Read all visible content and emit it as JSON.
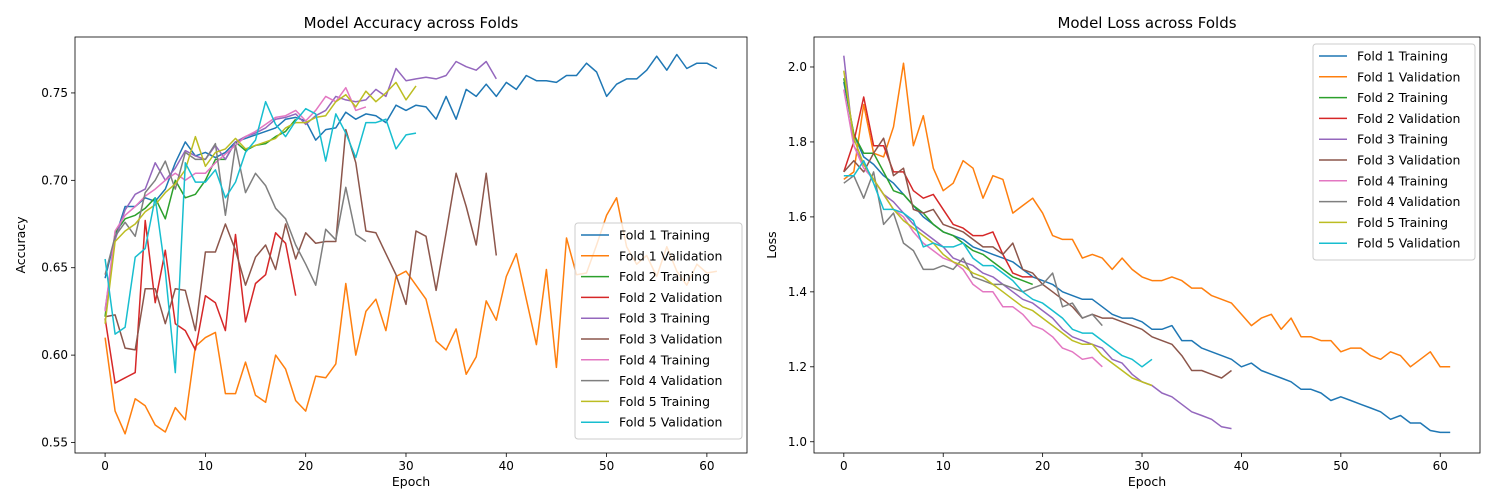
{
  "chart_data": [
    {
      "type": "line",
      "title": "Model Accuracy across Folds",
      "xlabel": "Epoch",
      "ylabel": "Accuracy",
      "xlim": [
        -3,
        64
      ],
      "ylim": [
        0.544,
        0.782
      ],
      "xticks": [
        0,
        10,
        20,
        30,
        40,
        50,
        60
      ],
      "yticks": [
        0.55,
        0.6,
        0.65,
        0.7,
        0.75
      ],
      "ytick_labels": [
        "0.55",
        "0.60",
        "0.65",
        "0.70",
        "0.75"
      ],
      "grid": false,
      "legend_position": "lower-right",
      "series": [
        {
          "name": "Fold 1 Training",
          "color": "#1f77b4",
          "values": [
            0.644,
            0.667,
            0.685,
            0.685,
            0.69,
            0.688,
            0.695,
            0.71,
            0.722,
            0.714,
            0.716,
            0.713,
            0.716,
            0.722,
            0.724,
            0.726,
            0.728,
            0.73,
            0.735,
            0.736,
            0.734,
            0.723,
            0.729,
            0.73,
            0.739,
            0.735,
            0.738,
            0.737,
            0.733,
            0.743,
            0.74,
            0.743,
            0.742,
            0.735,
            0.748,
            0.735,
            0.752,
            0.748,
            0.755,
            0.748,
            0.756,
            0.752,
            0.76,
            0.757,
            0.757,
            0.756,
            0.76,
            0.76,
            0.767,
            0.762,
            0.748,
            0.755,
            0.758,
            0.758,
            0.763,
            0.771,
            0.763,
            0.772,
            0.764,
            0.767,
            0.767,
            0.764
          ]
        },
        {
          "name": "Fold 1 Validation",
          "color": "#ff7f0e",
          "values": [
            0.61,
            0.568,
            0.555,
            0.575,
            0.571,
            0.56,
            0.556,
            0.57,
            0.563,
            0.605,
            0.61,
            0.613,
            0.578,
            0.578,
            0.596,
            0.577,
            0.573,
            0.6,
            0.592,
            0.574,
            0.568,
            0.588,
            0.587,
            0.595,
            0.641,
            0.6,
            0.625,
            0.632,
            0.614,
            0.645,
            0.648,
            0.64,
            0.632,
            0.608,
            0.603,
            0.615,
            0.589,
            0.599,
            0.631,
            0.62,
            0.645,
            0.658,
            0.632,
            0.606,
            0.649,
            0.593,
            0.667,
            0.646,
            0.647,
            0.663,
            0.68,
            0.69,
            0.662,
            0.652,
            0.657,
            0.645,
            0.662,
            0.648,
            0.64,
            0.652,
            0.647,
            0.648
          ]
        },
        {
          "name": "Fold 2 Training",
          "color": "#2ca02c",
          "values": [
            0.622,
            0.67,
            0.678,
            0.68,
            0.684,
            0.69,
            0.678,
            0.7,
            0.69,
            0.692,
            0.7,
            0.712,
            0.712,
            0.722,
            0.717,
            0.72,
            0.721,
            0.725,
            0.728,
            0.735
          ]
        },
        {
          "name": "Fold 2 Validation",
          "color": "#d62728",
          "values": [
            0.621,
            0.584,
            0.587,
            0.59,
            0.677,
            0.63,
            0.66,
            0.618,
            0.614,
            0.603,
            0.634,
            0.63,
            0.614,
            0.669,
            0.619,
            0.641,
            0.646,
            0.67,
            0.664,
            0.634
          ]
        },
        {
          "name": "Fold 3 Training",
          "color": "#9467bd",
          "values": [
            0.626,
            0.666,
            0.683,
            0.692,
            0.695,
            0.71,
            0.7,
            0.707,
            0.717,
            0.714,
            0.712,
            0.72,
            0.712,
            0.722,
            0.725,
            0.727,
            0.73,
            0.735,
            0.736,
            0.738,
            0.732,
            0.737,
            0.74,
            0.748,
            0.746,
            0.745,
            0.746,
            0.752,
            0.748,
            0.764,
            0.757,
            0.758,
            0.759,
            0.758,
            0.76,
            0.768,
            0.765,
            0.763,
            0.768,
            0.758
          ]
        },
        {
          "name": "Fold 3 Validation",
          "color": "#8c564b",
          "values": [
            0.622,
            0.623,
            0.604,
            0.603,
            0.638,
            0.638,
            0.618,
            0.638,
            0.637,
            0.614,
            0.659,
            0.659,
            0.675,
            0.66,
            0.64,
            0.656,
            0.663,
            0.649,
            0.675,
            0.655,
            0.67,
            0.664,
            0.665,
            0.665,
            0.729,
            0.71,
            0.671,
            0.67,
            0.658,
            0.646,
            0.629,
            0.671,
            0.668,
            0.637,
            0.67,
            0.704,
            0.685,
            0.663,
            0.704,
            0.657
          ]
        },
        {
          "name": "Fold 4 Training",
          "color": "#e377c2",
          "values": [
            0.625,
            0.671,
            0.68,
            0.685,
            0.691,
            0.695,
            0.7,
            0.704,
            0.7,
            0.704,
            0.704,
            0.71,
            0.715,
            0.72,
            0.725,
            0.728,
            0.732,
            0.736,
            0.737,
            0.74,
            0.734,
            0.74,
            0.748,
            0.745,
            0.753,
            0.74,
            0.742
          ]
        },
        {
          "name": "Fold 4 Validation",
          "color": "#7f7f7f",
          "values": [
            0.646,
            0.668,
            0.676,
            0.668,
            0.693,
            0.7,
            0.711,
            0.695,
            0.716,
            0.712,
            0.712,
            0.721,
            0.68,
            0.72,
            0.693,
            0.704,
            0.697,
            0.684,
            0.678,
            0.663,
            0.652,
            0.64,
            0.672,
            0.666,
            0.696,
            0.669,
            0.665
          ]
        },
        {
          "name": "Fold 5 Training",
          "color": "#bcbd22",
          "values": [
            0.618,
            0.665,
            0.671,
            0.675,
            0.682,
            0.686,
            0.693,
            0.698,
            0.706,
            0.725,
            0.708,
            0.716,
            0.718,
            0.724,
            0.718,
            0.72,
            0.722,
            0.724,
            0.73,
            0.733,
            0.733,
            0.736,
            0.737,
            0.745,
            0.749,
            0.742,
            0.751,
            0.745,
            0.75,
            0.756,
            0.746,
            0.754
          ]
        },
        {
          "name": "Fold 5 Validation",
          "color": "#17becf",
          "values": [
            0.655,
            0.612,
            0.616,
            0.656,
            0.661,
            0.69,
            0.648,
            0.59,
            0.71,
            0.699,
            0.699,
            0.706,
            0.69,
            0.699,
            0.716,
            0.723,
            0.745,
            0.732,
            0.725,
            0.734,
            0.741,
            0.738,
            0.711,
            0.738,
            0.727,
            0.713,
            0.733,
            0.733,
            0.735,
            0.718,
            0.726,
            0.727
          ]
        }
      ]
    },
    {
      "type": "line",
      "title": "Model Loss across Folds",
      "xlabel": "Epoch",
      "ylabel": "Loss",
      "xlim": [
        -3,
        64
      ],
      "ylim": [
        0.97,
        2.08
      ],
      "xticks": [
        0,
        10,
        20,
        30,
        40,
        50,
        60
      ],
      "yticks": [
        1.0,
        1.2,
        1.4,
        1.6,
        1.8,
        2.0
      ],
      "ytick_labels": [
        "1.0",
        "1.2",
        "1.4",
        "1.6",
        "1.8",
        "2.0"
      ],
      "grid": false,
      "legend_position": "upper-right",
      "series": [
        {
          "name": "Fold 1 Training",
          "color": "#1f77b4",
          "values": [
            1.96,
            1.82,
            1.76,
            1.74,
            1.71,
            1.69,
            1.66,
            1.63,
            1.6,
            1.58,
            1.56,
            1.55,
            1.54,
            1.52,
            1.51,
            1.5,
            1.49,
            1.48,
            1.46,
            1.44,
            1.43,
            1.42,
            1.4,
            1.39,
            1.38,
            1.38,
            1.36,
            1.34,
            1.33,
            1.33,
            1.32,
            1.3,
            1.3,
            1.31,
            1.27,
            1.27,
            1.25,
            1.24,
            1.23,
            1.22,
            1.2,
            1.21,
            1.19,
            1.18,
            1.17,
            1.16,
            1.14,
            1.14,
            1.13,
            1.11,
            1.12,
            1.11,
            1.1,
            1.09,
            1.08,
            1.06,
            1.07,
            1.05,
            1.05,
            1.03,
            1.025,
            1.025
          ]
        },
        {
          "name": "Fold 1 Validation",
          "color": "#ff7f0e",
          "values": [
            1.7,
            1.72,
            1.9,
            1.77,
            1.76,
            1.84,
            2.01,
            1.79,
            1.87,
            1.73,
            1.67,
            1.69,
            1.75,
            1.73,
            1.65,
            1.71,
            1.7,
            1.61,
            1.63,
            1.65,
            1.61,
            1.55,
            1.54,
            1.54,
            1.49,
            1.5,
            1.49,
            1.46,
            1.49,
            1.46,
            1.44,
            1.43,
            1.43,
            1.44,
            1.43,
            1.41,
            1.41,
            1.39,
            1.38,
            1.37,
            1.34,
            1.31,
            1.33,
            1.34,
            1.3,
            1.33,
            1.28,
            1.28,
            1.27,
            1.27,
            1.24,
            1.25,
            1.25,
            1.23,
            1.22,
            1.24,
            1.23,
            1.2,
            1.22,
            1.24,
            1.2,
            1.2
          ]
        },
        {
          "name": "Fold 2 Training",
          "color": "#2ca02c",
          "values": [
            1.97,
            1.82,
            1.77,
            1.77,
            1.72,
            1.67,
            1.66,
            1.63,
            1.61,
            1.58,
            1.56,
            1.55,
            1.53,
            1.51,
            1.5,
            1.48,
            1.46,
            1.44,
            1.43,
            1.42
          ]
        },
        {
          "name": "Fold 2 Validation",
          "color": "#d62728",
          "values": [
            1.72,
            1.8,
            1.92,
            1.79,
            1.79,
            1.72,
            1.72,
            1.67,
            1.65,
            1.66,
            1.62,
            1.58,
            1.57,
            1.55,
            1.55,
            1.56,
            1.5,
            1.45,
            1.44,
            1.44
          ]
        },
        {
          "name": "Fold 3 Training",
          "color": "#9467bd",
          "values": [
            2.03,
            1.79,
            1.74,
            1.7,
            1.66,
            1.64,
            1.61,
            1.58,
            1.56,
            1.54,
            1.52,
            1.49,
            1.48,
            1.47,
            1.45,
            1.44,
            1.42,
            1.4,
            1.38,
            1.37,
            1.35,
            1.33,
            1.3,
            1.28,
            1.27,
            1.26,
            1.25,
            1.22,
            1.21,
            1.18,
            1.16,
            1.15,
            1.13,
            1.12,
            1.1,
            1.08,
            1.07,
            1.06,
            1.04,
            1.035
          ]
        },
        {
          "name": "Fold 3 Validation",
          "color": "#8c564b",
          "values": [
            1.72,
            1.75,
            1.72,
            1.77,
            1.81,
            1.71,
            1.73,
            1.62,
            1.61,
            1.62,
            1.58,
            1.57,
            1.56,
            1.54,
            1.52,
            1.52,
            1.5,
            1.53,
            1.46,
            1.45,
            1.42,
            1.4,
            1.38,
            1.36,
            1.33,
            1.34,
            1.33,
            1.33,
            1.32,
            1.31,
            1.3,
            1.28,
            1.27,
            1.26,
            1.23,
            1.19,
            1.19,
            1.18,
            1.17,
            1.19
          ]
        },
        {
          "name": "Fold 4 Training",
          "color": "#e377c2",
          "values": [
            1.94,
            1.79,
            1.73,
            1.7,
            1.66,
            1.62,
            1.6,
            1.56,
            1.53,
            1.51,
            1.49,
            1.48,
            1.46,
            1.42,
            1.4,
            1.4,
            1.36,
            1.36,
            1.34,
            1.31,
            1.3,
            1.28,
            1.25,
            1.24,
            1.22,
            1.225,
            1.2
          ]
        },
        {
          "name": "Fold 4 Validation",
          "color": "#7f7f7f",
          "values": [
            1.69,
            1.71,
            1.65,
            1.72,
            1.58,
            1.61,
            1.53,
            1.51,
            1.46,
            1.46,
            1.47,
            1.46,
            1.49,
            1.44,
            1.43,
            1.42,
            1.42,
            1.41,
            1.4,
            1.41,
            1.42,
            1.45,
            1.36,
            1.37,
            1.33,
            1.34,
            1.31
          ]
        },
        {
          "name": "Fold 5 Training",
          "color": "#bcbd22",
          "values": [
            1.99,
            1.81,
            1.74,
            1.7,
            1.66,
            1.62,
            1.59,
            1.57,
            1.55,
            1.53,
            1.5,
            1.48,
            1.47,
            1.45,
            1.44,
            1.42,
            1.4,
            1.38,
            1.36,
            1.35,
            1.33,
            1.31,
            1.29,
            1.27,
            1.26,
            1.26,
            1.23,
            1.21,
            1.19,
            1.17,
            1.16,
            1.15
          ]
        },
        {
          "name": "Fold 5 Validation",
          "color": "#17becf",
          "values": [
            1.71,
            1.71,
            1.75,
            1.69,
            1.62,
            1.62,
            1.61,
            1.59,
            1.52,
            1.53,
            1.52,
            1.52,
            1.53,
            1.49,
            1.47,
            1.47,
            1.45,
            1.43,
            1.4,
            1.38,
            1.37,
            1.35,
            1.33,
            1.3,
            1.29,
            1.29,
            1.27,
            1.25,
            1.23,
            1.22,
            1.2,
            1.22
          ]
        }
      ]
    }
  ]
}
